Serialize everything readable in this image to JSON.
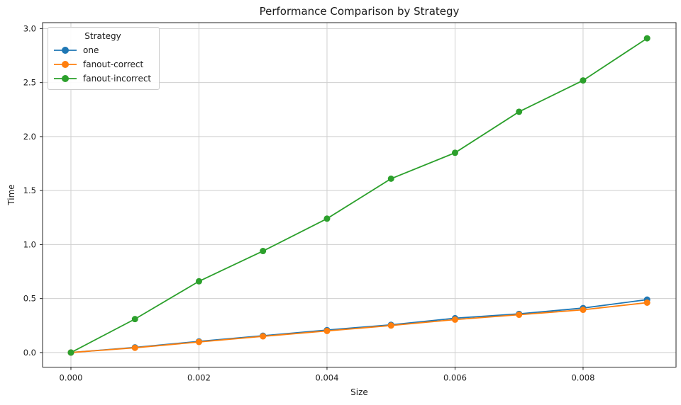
{
  "figure": {
    "background": "#ffffff"
  },
  "chart_data": {
    "type": "line",
    "title": "Performance Comparison by Strategy",
    "xlabel": "Size",
    "ylabel": "Time",
    "grid": true,
    "legend": {
      "title": "Strategy",
      "position": "upper-left"
    },
    "marker": "circle",
    "x": [
      0.0,
      0.001,
      0.002,
      0.003,
      0.004,
      0.005,
      0.006,
      0.007,
      0.008,
      0.009
    ],
    "series": [
      {
        "name": "one",
        "color": "#1f77b4",
        "values": [
          0.0,
          0.048,
          0.103,
          0.156,
          0.208,
          0.257,
          0.318,
          0.358,
          0.412,
          0.49
        ]
      },
      {
        "name": "fanout-correct",
        "color": "#ff7f0e",
        "values": [
          0.0,
          0.044,
          0.098,
          0.15,
          0.2,
          0.25,
          0.305,
          0.35,
          0.396,
          0.462
        ]
      },
      {
        "name": "fanout-incorrect",
        "color": "#2ca02c",
        "values": [
          0.0,
          0.31,
          0.66,
          0.94,
          1.24,
          1.61,
          1.85,
          2.23,
          2.52,
          2.91
        ]
      }
    ],
    "x_ticks": {
      "values": [
        0.0,
        0.002,
        0.004,
        0.006,
        0.008
      ],
      "labels": [
        "0.000",
        "0.002",
        "0.004",
        "0.006",
        "0.008"
      ]
    },
    "y_ticks": {
      "values": [
        0.0,
        0.5,
        1.0,
        1.5,
        2.0,
        2.5,
        3.0
      ],
      "labels": [
        "0.0",
        "0.5",
        "1.0",
        "1.5",
        "2.0",
        "2.5",
        "3.0"
      ]
    },
    "xlim": [
      -0.000443,
      0.009452
    ],
    "ylim": [
      -0.135,
      3.055
    ]
  },
  "colors": {
    "grid": "#cfcfcf",
    "spine": "#262626",
    "tick": "#262626",
    "text": "#1a1a1a",
    "legend_border": "#cccccc"
  }
}
